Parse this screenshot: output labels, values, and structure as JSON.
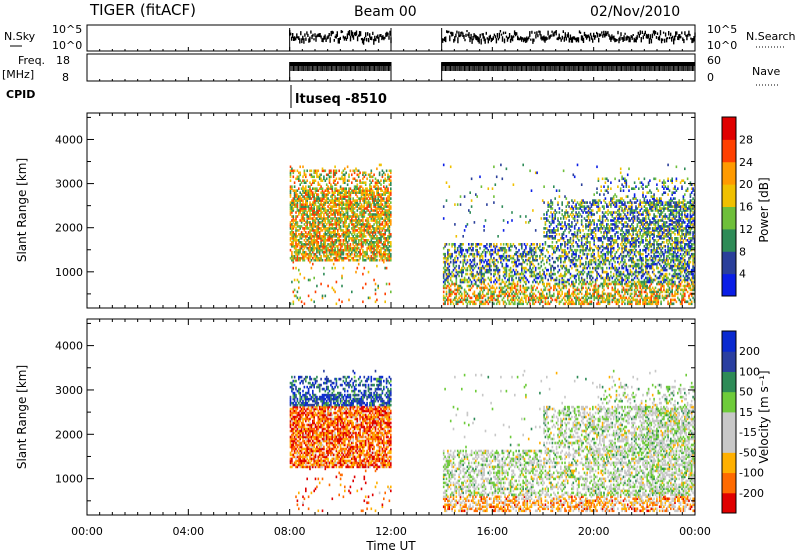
{
  "header": {
    "station": "TIGER (fitACF)",
    "beam": "Beam 00",
    "date": "02/Nov/2010"
  },
  "strips": {
    "nsky_label": "N.Sky",
    "nsky_ticks": [
      "10^5",
      "10^0"
    ],
    "nsearch_label": "N.Search",
    "nsearch_ticks": [
      "10^5",
      "10^0"
    ],
    "freq_label": "Freq.",
    "freq_unit": "[MHz]",
    "freq_ticks": [
      "18",
      "8"
    ],
    "nave_label": "Nave",
    "nave_ticks": [
      "60",
      "0"
    ],
    "cpid_label": "CPID",
    "cpid_text": "ltuseq -8510"
  },
  "x_axis": {
    "label": "Time UT",
    "ticks": [
      "00:00",
      "04:00",
      "08:00",
      "12:00",
      "16:00",
      "20:00",
      "00:00"
    ]
  },
  "colors": {
    "power": [
      "#0a1ee6",
      "#2a3f9a",
      "#2e8b57",
      "#6ebf3a",
      "#f0c000",
      "#ff9a00",
      "#ff4000",
      "#e00000"
    ],
    "velocity": [
      "#e00000",
      "#ff6a00",
      "#ffb000",
      "#c8c8c8",
      "#c8c8c8",
      "#6ecb3a",
      "#2e8b57",
      "#2a3fa0",
      "#0a2ad0"
    ]
  },
  "chart_data": [
    {
      "type": "heatmap",
      "name": "power",
      "ylabel": "Slant Range [km]",
      "yticks": [
        "1000",
        "2000",
        "3000",
        "4000"
      ],
      "ylim": [
        180,
        4600
      ],
      "xlim": [
        0,
        24
      ],
      "colorbar_label": "Power [dB]",
      "colorbar_ticks": [
        "4",
        "8",
        "12",
        "16",
        "20",
        "24",
        "28"
      ],
      "colorbar_range": [
        0,
        30
      ],
      "data_gaps_hours": [
        [
          0,
          8
        ],
        [
          12,
          14
        ]
      ]
    },
    {
      "type": "heatmap",
      "name": "velocity",
      "ylabel": "Slant Range [km]",
      "yticks": [
        "1000",
        "2000",
        "3000",
        "4000"
      ],
      "ylim": [
        180,
        4600
      ],
      "xlim": [
        0,
        24
      ],
      "colorbar_label": "Velocity [m s⁻¹]",
      "colorbar_ticks": [
        "200",
        "100",
        "50",
        "15",
        "-15",
        "-50",
        "-100",
        "-200"
      ],
      "data_gaps_hours": [
        [
          0,
          8
        ],
        [
          12,
          14
        ]
      ]
    }
  ]
}
